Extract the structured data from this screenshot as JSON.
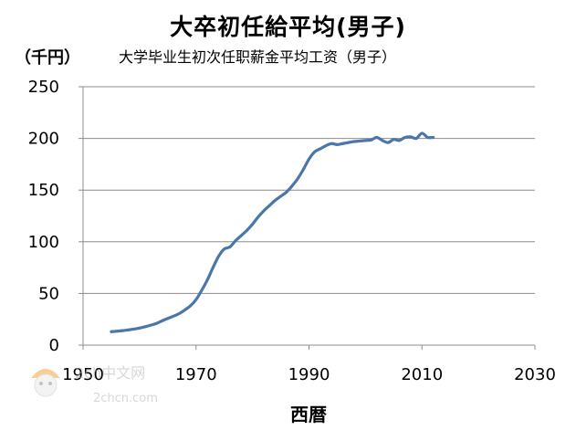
{
  "chart_data": {
    "type": "line",
    "title": "大卒初任給平均(男子)",
    "subtitle": "大学毕业生初次任职薪金平均工资（男子）",
    "ylabel": "（千円）",
    "xlabel": "西暦",
    "xlim": [
      1950,
      2030
    ],
    "ylim": [
      0,
      250
    ],
    "xticks": [
      1950,
      1970,
      1990,
      2010,
      2030
    ],
    "yticks": [
      0,
      50,
      100,
      150,
      200,
      250
    ],
    "grid": "horizontal",
    "series": [
      {
        "color": "#4a77aa",
        "x": [
          1955,
          1956,
          1957,
          1958,
          1959,
          1960,
          1961,
          1962,
          1963,
          1964,
          1965,
          1966,
          1967,
          1968,
          1969,
          1970,
          1971,
          1972,
          1973,
          1974,
          1975,
          1976,
          1977,
          1978,
          1979,
          1980,
          1981,
          1982,
          1983,
          1984,
          1985,
          1986,
          1987,
          1988,
          1989,
          1990,
          1991,
          1992,
          1993,
          1994,
          1995,
          1996,
          1997,
          1998,
          1999,
          2000,
          2001,
          2002,
          2003,
          2004,
          2005,
          2006,
          2007,
          2008,
          2009,
          2010,
          2011,
          2012
        ],
        "y": [
          13,
          13.5,
          14,
          14.7,
          15.5,
          16.5,
          17.8,
          19.3,
          21,
          23.5,
          25.8,
          28,
          30.5,
          34,
          38,
          44,
          53,
          63,
          75,
          86,
          93,
          95,
          101,
          106,
          111,
          117,
          124,
          130,
          135,
          140,
          144,
          148,
          154,
          161,
          170,
          180,
          187,
          190,
          193,
          195,
          194,
          195,
          196,
          197,
          197.5,
          198,
          198.5,
          201,
          198,
          196,
          199,
          198,
          201,
          201.5,
          200,
          205,
          201,
          201
        ]
      }
    ]
  },
  "watermark": {
    "line1": "2ch中文网",
    "line2": "2chcn.com"
  }
}
